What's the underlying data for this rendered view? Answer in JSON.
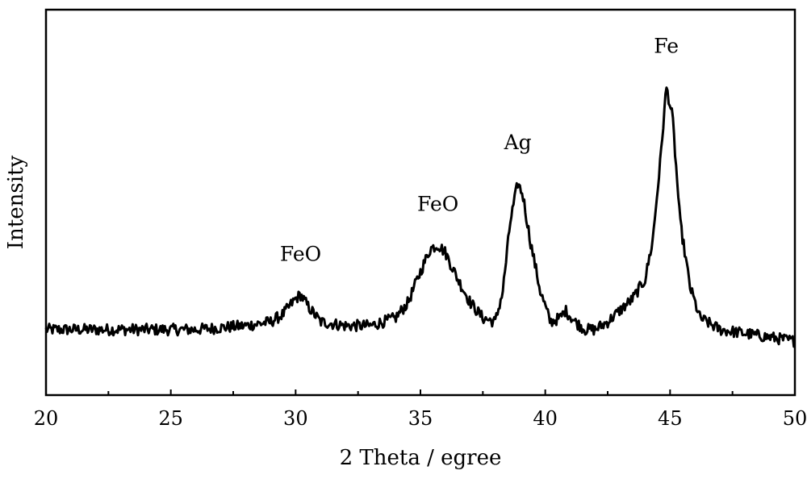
{
  "chart_data": {
    "type": "line",
    "title": "",
    "xlabel": "2 Theta / egree",
    "ylabel": "Intensity",
    "xlim": [
      20,
      50
    ],
    "ylim": [
      0,
      1
    ],
    "x_ticks": [
      20,
      25,
      30,
      35,
      40,
      45,
      50
    ],
    "y_ticks_shown": false,
    "grid": false,
    "legend": "none",
    "line_color": "#000000",
    "series": [
      {
        "x": [
          20,
          22,
          24,
          26,
          28,
          29,
          29.5,
          30,
          30.2,
          30.5,
          31,
          32,
          33,
          34,
          34.5,
          35,
          35.4,
          35.7,
          36,
          36.5,
          37,
          37.5,
          38,
          38.3,
          38.6,
          38.9,
          39.1,
          39.4,
          39.8,
          40.2,
          40.6,
          40.8,
          41.2,
          41.6,
          42,
          42.5,
          43,
          43.5,
          44,
          44.3,
          44.6,
          44.85,
          45.1,
          45.4,
          45.8,
          46.2,
          47,
          48,
          49,
          50
        ],
        "y": [
          0.17,
          0.17,
          0.17,
          0.17,
          0.18,
          0.19,
          0.21,
          0.25,
          0.26,
          0.23,
          0.19,
          0.18,
          0.18,
          0.2,
          0.24,
          0.32,
          0.38,
          0.39,
          0.37,
          0.3,
          0.24,
          0.2,
          0.19,
          0.27,
          0.45,
          0.55,
          0.52,
          0.4,
          0.27,
          0.19,
          0.2,
          0.22,
          0.19,
          0.17,
          0.17,
          0.19,
          0.22,
          0.25,
          0.3,
          0.4,
          0.6,
          0.8,
          0.72,
          0.45,
          0.28,
          0.2,
          0.17,
          0.16,
          0.15,
          0.14
        ]
      }
    ],
    "annotations": [
      {
        "text": "FeO",
        "x": 30.2
      },
      {
        "text": "FeO",
        "x": 35.7
      },
      {
        "text": "Ag",
        "x": 38.9
      },
      {
        "text": "Fe",
        "x": 44.85
      }
    ]
  }
}
